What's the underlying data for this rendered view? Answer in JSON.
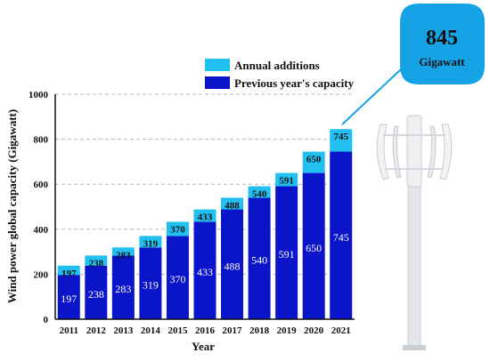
{
  "chart_data": {
    "type": "bar",
    "stacked": true,
    "categories": [
      "2011",
      "2012",
      "2013",
      "2014",
      "2015",
      "2016",
      "2017",
      "2018",
      "2019",
      "2020",
      "2021"
    ],
    "series": [
      {
        "name": "Previous year's capacity",
        "color": "#0a14c8",
        "values": [
          197,
          238,
          283,
          319,
          370,
          433,
          488,
          540,
          591,
          650,
          745
        ]
      },
      {
        "name": "Annual additions",
        "color": "#22c0f0",
        "values": [
          41,
          45,
          36,
          51,
          63,
          55,
          52,
          51,
          59,
          95,
          100
        ]
      }
    ],
    "top_labels": [
      "197",
      "238",
      "283",
      "319",
      "370",
      "433",
      "488",
      "540",
      "591",
      "650",
      "745"
    ],
    "inner_labels": [
      "197",
      "238",
      "283",
      "319",
      "370",
      "433",
      "488",
      "540",
      "591",
      "650",
      "745"
    ],
    "xlabel": "Year",
    "ylabel": "Wind power global capacity (Gigawatt)",
    "ylim": [
      0,
      1000
    ],
    "yticks": [
      "0",
      "200",
      "400",
      "600",
      "800",
      "1000"
    ],
    "yticks_values": [
      0,
      200,
      400,
      600,
      800,
      1000
    ],
    "grid": "horizontal dashed",
    "legend": {
      "placement": "top-left",
      "items": [
        "Annual additions",
        "Previous year's capacity"
      ]
    },
    "callout": {
      "value": "845",
      "unit": "Gigawatt",
      "color": "#16a3e6"
    }
  }
}
